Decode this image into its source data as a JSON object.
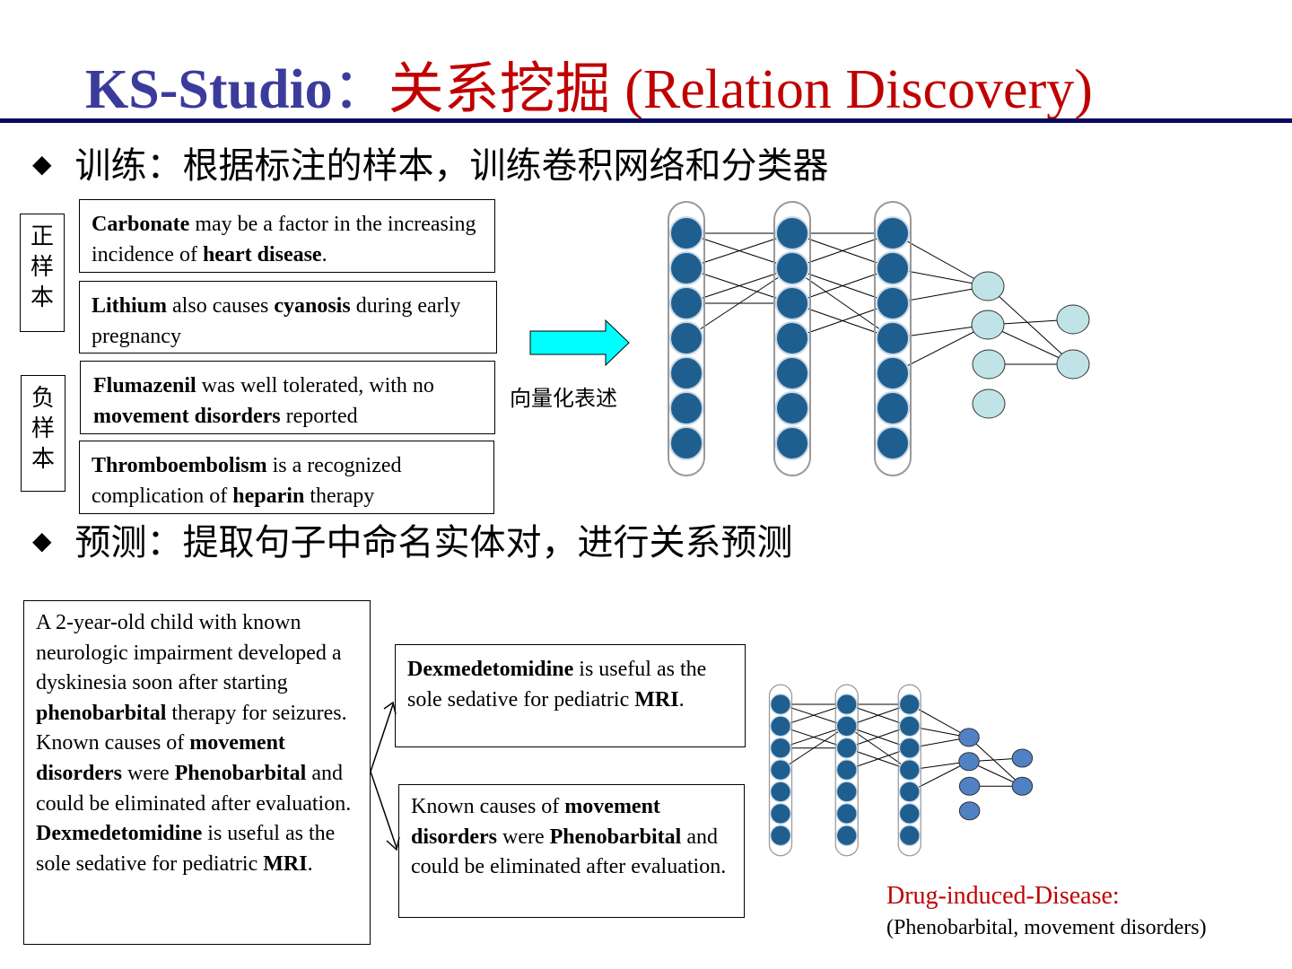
{
  "title": {
    "brand": "KS-Studio",
    "separator": "：",
    "topic": "关系挖掘 (Relation Discovery)"
  },
  "bullets": [
    "训练：根据标注的样本，训练卷积网络和分类器",
    "预测：提取句子中命名实体对，进行关系预测"
  ],
  "sample_labels": [
    "正样本",
    "负样本"
  ],
  "training_sentences": [
    [
      {
        "text": "Carbonate",
        "bold": true
      },
      {
        "text": " may be a factor in the increasing incidence of "
      },
      {
        "text": "heart disease",
        "bold": true
      },
      {
        "text": "."
      }
    ],
    [
      {
        "text": "Lithium",
        "bold": true
      },
      {
        "text": " also causes "
      },
      {
        "text": "cyanosis",
        "bold": true
      },
      {
        "text": " during early pregnancy"
      }
    ],
    [
      {
        "text": "Flumazenil",
        "bold": true
      },
      {
        "text": " was well tolerated, with no "
      },
      {
        "text": "movement disorders",
        "bold": true
      },
      {
        "text": " reported"
      }
    ],
    [
      {
        "text": "Thromboembolism",
        "bold": true
      },
      {
        "text": " is a recognized complication of "
      },
      {
        "text": "heparin",
        "bold": true
      },
      {
        "text": " therapy"
      }
    ]
  ],
  "vectorize_label": "向量化表述",
  "input_passage": [
    {
      "text": " A 2-year-old child with known neurologic impairment developed a dyskinesia soon after starting "
    },
    {
      "text": "phenobarbital",
      "bold": true
    },
    {
      "text": " therapy for seizures. Known causes of "
    },
    {
      "text": "movement disorders",
      "bold": true
    },
    {
      "text": " were "
    },
    {
      "text": "Phenobarbital",
      "bold": true
    },
    {
      "text": " and could be eliminated after evaluation. "
    },
    {
      "text": "Dexmedetomidine",
      "bold": true
    },
    {
      "text": " is useful as the sole sedative for pediatric "
    },
    {
      "text": "MRI",
      "bold": true
    },
    {
      "text": "."
    }
  ],
  "extracted_sentences": [
    [
      {
        "text": "Dexmedetomidine",
        "bold": true
      },
      {
        "text": " is useful as the sole sedative for pediatric "
      },
      {
        "text": "MRI",
        "bold": true
      },
      {
        "text": "."
      }
    ],
    [
      {
        "text": "Known causes of "
      },
      {
        "text": "movement disorders",
        "bold": true
      },
      {
        "text": " were "
      },
      {
        "text": "Phenobarbital",
        "bold": true
      },
      {
        "text": " and could  be eliminated after evaluation."
      }
    ]
  ],
  "result": {
    "label": "Drug-induced-Disease:",
    "pair": "(Phenobarbital,  movement disorders)"
  }
}
